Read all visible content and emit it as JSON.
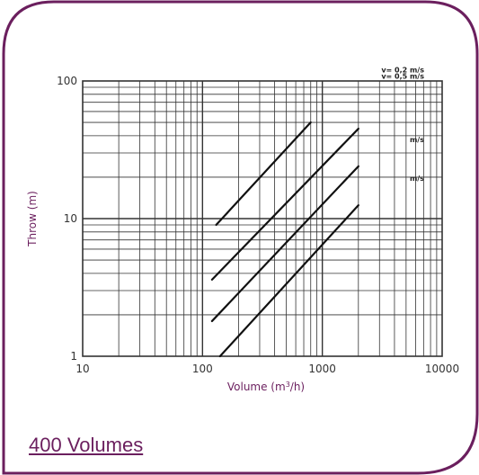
{
  "footer": {
    "link_label": "400 Volumes"
  },
  "colors": {
    "accent": "#6b1f5e",
    "grid": "#333333",
    "line": "#111111",
    "background": "#ffffff"
  },
  "chart_data": {
    "type": "line",
    "xscale": "log",
    "yscale": "log",
    "xlim": [
      10,
      10000
    ],
    "ylim": [
      1,
      100
    ],
    "grid": true,
    "xticks": [
      "10",
      "100",
      "1000",
      "10000"
    ],
    "yticks": [
      "1",
      "10",
      "100"
    ],
    "xlabel": {
      "prefix": "Volume (m",
      "sup": "3",
      "suffix": "/h)"
    },
    "ylabel": "Throw (m)",
    "series": [
      {
        "name": "v= 0,2 m/s",
        "points": [
          [
            130,
            9
          ],
          [
            800,
            50
          ]
        ]
      },
      {
        "name": "v= 0,5 m/s",
        "points": [
          [
            120,
            3.6
          ],
          [
            2000,
            45
          ]
        ]
      },
      {
        "name": "m/s",
        "points": [
          [
            120,
            1.8
          ],
          [
            2000,
            24
          ]
        ]
      },
      {
        "name": "m/s",
        "points": [
          [
            140,
            1.0
          ],
          [
            2000,
            12.5
          ]
        ]
      }
    ]
  }
}
